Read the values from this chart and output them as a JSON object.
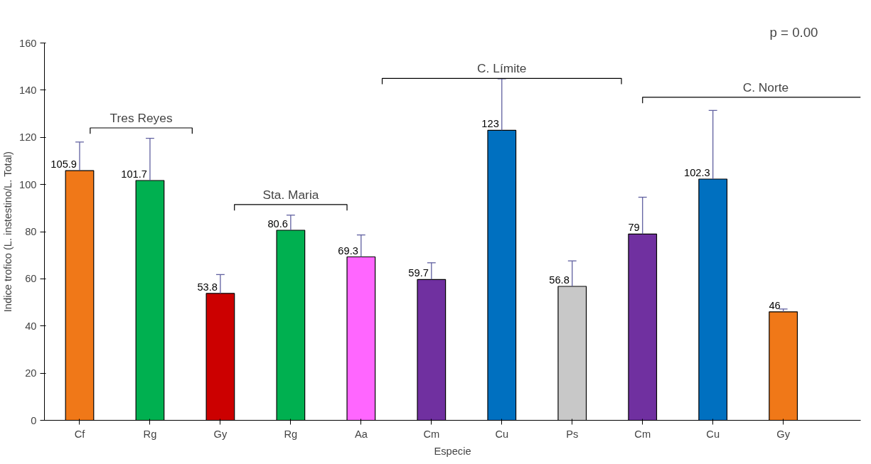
{
  "chart_data": {
    "type": "bar",
    "xlabel": "Especie",
    "ylabel": "Indice trofico (L. instestino/L. Total)",
    "categories": [
      "Cf",
      "Rg",
      "Gy",
      "Rg",
      "Aa",
      "Cm",
      "Cu",
      "Ps",
      "Cm",
      "Cu",
      "Gy"
    ],
    "values": [
      105.9,
      101.7,
      53.8,
      80.6,
      69.3,
      59.7,
      123,
      56.8,
      79,
      102.3,
      46
    ],
    "colors": [
      "#f07818",
      "#00b050",
      "#cc0000",
      "#00b050",
      "#ff66ff",
      "#7030a0",
      "#0070c0",
      "#c8c8c8",
      "#7030a0",
      "#0070c0",
      "#f07818"
    ],
    "errors": [
      [
        105.9,
        118
      ],
      [
        101.7,
        119.6
      ],
      [
        53.8,
        61.8
      ],
      [
        80.6,
        87
      ],
      [
        69.3,
        78.6
      ],
      [
        59.7,
        66.8
      ],
      [
        123,
        144.8
      ],
      [
        56.8,
        67.6
      ],
      [
        79,
        94.6
      ],
      [
        102.3,
        131.4
      ],
      [
        46,
        47.2
      ]
    ],
    "data_labels": true,
    "ylim": [
      0,
      160
    ],
    "yticks": [
      0,
      20,
      40,
      60,
      80,
      100,
      120,
      140,
      160
    ],
    "grid": false,
    "annotations": [
      "Tres Reyes",
      "Sta. Maria",
      "C. Límite",
      "C. Norte",
      "p = 0.00"
    ]
  }
}
